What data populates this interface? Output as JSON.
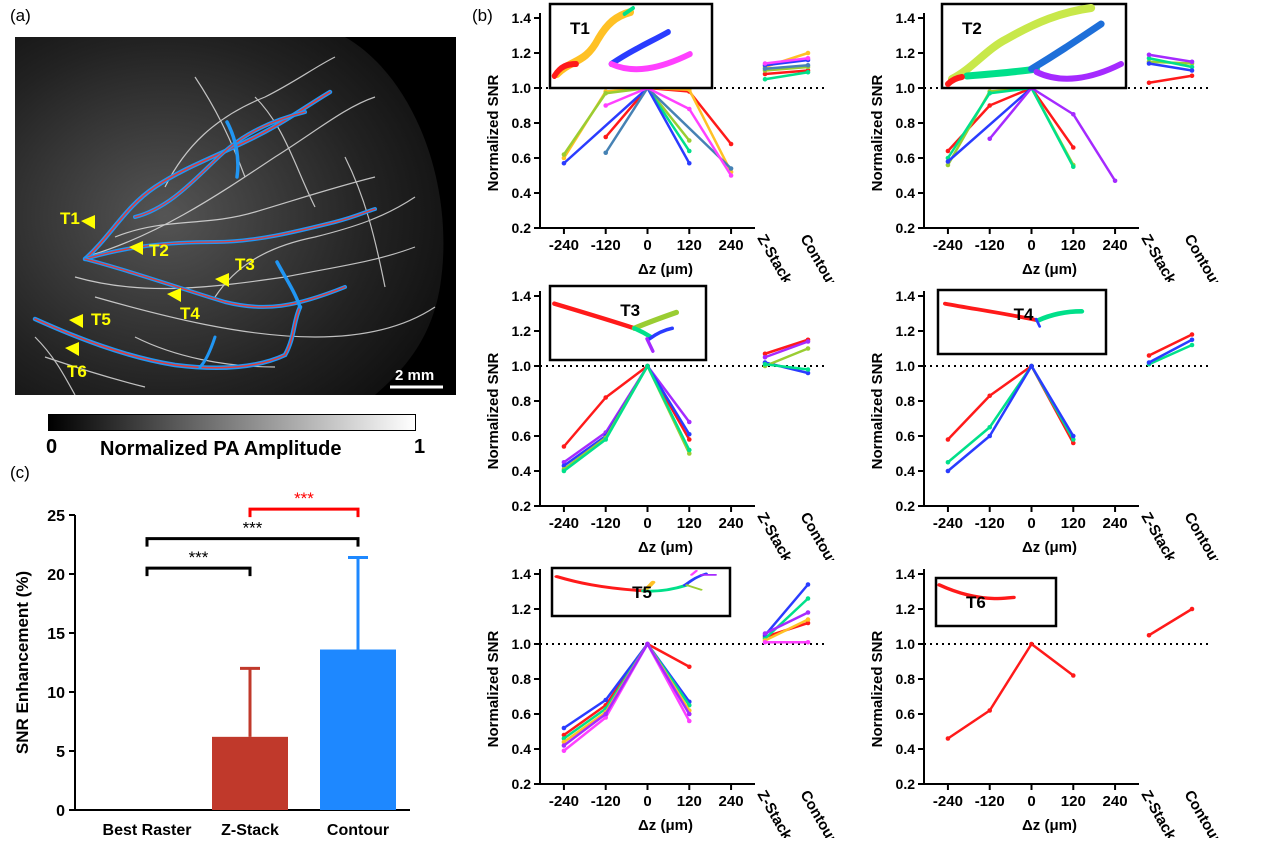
{
  "panels": {
    "a": "(a)",
    "b": "(b)",
    "c": "(c)"
  },
  "panel_a": {
    "targets": [
      "T1",
      "T2",
      "T3",
      "T4",
      "T5",
      "T6"
    ],
    "scale_bar": "2 mm",
    "colorbar": {
      "title": "Normalized PA Amplitude",
      "min": "0",
      "max": "1"
    }
  },
  "chart_data": [
    {
      "type": "bar",
      "panel": "c",
      "categories": [
        "Best Raster",
        "Z-Stack",
        "Contour"
      ],
      "values": [
        0,
        6.2,
        13.6
      ],
      "errors": [
        0,
        5.8,
        7.8
      ],
      "colors": [
        "#c0392b",
        "#c0392b",
        "#1e88ff"
      ],
      "xlabel": "",
      "ylabel": "SNR Enhancement (%)",
      "ylim": [
        0,
        25
      ],
      "yticks": [
        "0",
        "5",
        "10",
        "15",
        "20",
        "25"
      ],
      "significance": [
        {
          "label": "***",
          "from": "Best Raster",
          "to": "Z-Stack",
          "color": "#000000"
        },
        {
          "label": "***",
          "from": "Best Raster",
          "to": "Contour",
          "color": "#000000"
        },
        {
          "label": "***",
          "from": "Z-Stack",
          "to": "Contour",
          "color": "#ff0000"
        }
      ]
    },
    {
      "type": "line",
      "panel": "b",
      "title": "T1",
      "xlabel": "Δz (μm)",
      "ylabel": "Normalized SNR",
      "x": [
        -240,
        -120,
        0,
        120,
        240
      ],
      "xticks": [
        "-240",
        "-120",
        "0",
        "120",
        "240"
      ],
      "categories": [
        "Z-Stack",
        "Contour"
      ],
      "ylim": [
        0.2,
        1.4
      ],
      "yticks": [
        "0.2",
        "0.4",
        "0.6",
        "0.8",
        "1.0",
        "1.2",
        "1.4"
      ],
      "reference": 1.0,
      "series": [
        {
          "color": "#ff1a1a",
          "values": [
            null,
            0.72,
            1.0,
            0.98,
            0.68
          ],
          "compare": [
            1.08,
            1.1
          ]
        },
        {
          "color": "#ffc125",
          "values": [
            0.6,
            0.98,
            1.0,
            0.99,
            0.52
          ],
          "compare": [
            1.12,
            1.2
          ]
        },
        {
          "color": "#9acd32",
          "values": [
            0.62,
            0.97,
            1.0,
            0.7,
            null
          ],
          "compare": [
            1.1,
            1.12
          ]
        },
        {
          "color": "#00e08a",
          "values": [
            null,
            null,
            1.0,
            0.64,
            null
          ],
          "compare": [
            1.05,
            1.09
          ]
        },
        {
          "color": "#2a3cff",
          "values": [
            0.57,
            null,
            1.0,
            0.57,
            null
          ],
          "compare": [
            1.13,
            1.16
          ]
        },
        {
          "color": "#4682b4",
          "values": [
            null,
            0.63,
            1.0,
            null,
            0.54
          ],
          "compare": [
            1.11,
            1.13
          ]
        },
        {
          "color": "#ff40ff",
          "values": [
            null,
            0.9,
            1.0,
            0.88,
            0.5
          ],
          "compare": [
            1.14,
            1.17
          ]
        }
      ]
    },
    {
      "type": "line",
      "panel": "b",
      "title": "T2",
      "xlabel": "Δz (μm)",
      "ylabel": "Normalized SNR",
      "x": [
        -240,
        -120,
        0,
        120,
        240
      ],
      "xticks": [
        "-240",
        "-120",
        "0",
        "120",
        "240"
      ],
      "categories": [
        "Z-Stack",
        "Contour"
      ],
      "ylim": [
        0.2,
        1.4
      ],
      "yticks": [
        "0.2",
        "0.4",
        "0.6",
        "0.8",
        "1.0",
        "1.2",
        "1.4"
      ],
      "reference": 1.0,
      "series": [
        {
          "color": "#ff1a1a",
          "values": [
            0.64,
            0.9,
            1.0,
            0.66,
            null
          ],
          "compare": [
            1.03,
            1.07
          ]
        },
        {
          "color": "#9acd32",
          "values": [
            0.56,
            0.98,
            1.0,
            0.56,
            null
          ],
          "compare": [
            1.15,
            1.14
          ]
        },
        {
          "color": "#00e08a",
          "values": [
            0.6,
            0.97,
            1.0,
            0.55,
            null
          ],
          "compare": [
            1.17,
            1.12
          ]
        },
        {
          "color": "#2a3cff",
          "values": [
            0.58,
            null,
            1.0,
            null,
            null
          ],
          "compare": [
            1.14,
            1.1
          ]
        },
        {
          "color": "#a52aff",
          "values": [
            null,
            0.71,
            1.0,
            0.85,
            0.47
          ],
          "compare": [
            1.19,
            1.15
          ]
        }
      ]
    },
    {
      "type": "line",
      "panel": "b",
      "title": "T3",
      "xlabel": "Δz (μm)",
      "ylabel": "Normalized SNR",
      "x": [
        -240,
        -120,
        0,
        120,
        240
      ],
      "xticks": [
        "-240",
        "-120",
        "0",
        "120",
        "240"
      ],
      "categories": [
        "Z-Stack",
        "Contour"
      ],
      "ylim": [
        0.2,
        1.4
      ],
      "yticks": [
        "0.2",
        "0.4",
        "0.6",
        "0.8",
        "1.0",
        "1.2",
        "1.4"
      ],
      "reference": 1.0,
      "series": [
        {
          "color": "#ff1a1a",
          "values": [
            0.54,
            0.82,
            1.0,
            0.58,
            null
          ],
          "compare": [
            1.07,
            1.15
          ]
        },
        {
          "color": "#a52aff",
          "values": [
            0.45,
            0.62,
            1.0,
            0.68,
            null
          ],
          "compare": [
            1.05,
            1.14
          ]
        },
        {
          "color": "#2a3cff",
          "values": [
            0.43,
            0.6,
            1.0,
            0.61,
            null
          ],
          "compare": [
            1.02,
            0.96
          ]
        },
        {
          "color": "#9acd32",
          "values": [
            0.41,
            0.59,
            1.0,
            0.5,
            null
          ],
          "compare": [
            1.0,
            1.1
          ]
        },
        {
          "color": "#00e08a",
          "values": [
            0.4,
            0.58,
            1.0,
            0.52,
            null
          ],
          "compare": [
            1.01,
            0.98
          ]
        }
      ]
    },
    {
      "type": "line",
      "panel": "b",
      "title": "T4",
      "xlabel": "Δz (μm)",
      "ylabel": "Normalized SNR",
      "x": [
        -240,
        -120,
        0,
        120,
        240
      ],
      "xticks": [
        "-240",
        "-120",
        "0",
        "120",
        "240"
      ],
      "categories": [
        "Z-Stack",
        "Contour"
      ],
      "ylim": [
        0.2,
        1.4
      ],
      "yticks": [
        "0.2",
        "0.4",
        "0.6",
        "0.8",
        "1.0",
        "1.2",
        "1.4"
      ],
      "reference": 1.0,
      "series": [
        {
          "color": "#ff1a1a",
          "values": [
            0.58,
            0.83,
            1.0,
            0.56,
            null
          ],
          "compare": [
            1.06,
            1.18
          ]
        },
        {
          "color": "#00e08a",
          "values": [
            0.45,
            0.65,
            1.0,
            0.58,
            null
          ],
          "compare": [
            1.01,
            1.12
          ]
        },
        {
          "color": "#2a3cff",
          "values": [
            0.4,
            0.6,
            1.0,
            0.6,
            null
          ],
          "compare": [
            1.02,
            1.15
          ]
        }
      ]
    },
    {
      "type": "line",
      "panel": "b",
      "title": "T5",
      "xlabel": "Δz (μm)",
      "ylabel": "Normalized SNR",
      "x": [
        -240,
        -120,
        0,
        120,
        240
      ],
      "xticks": [
        "-240",
        "-120",
        "0",
        "120",
        "240"
      ],
      "categories": [
        "Z-Stack",
        "Contour"
      ],
      "ylim": [
        0.2,
        1.4
      ],
      "yticks": [
        "0.2",
        "0.4",
        "0.6",
        "0.8",
        "1.0",
        "1.2",
        "1.4"
      ],
      "reference": 1.0,
      "series": [
        {
          "color": "#ff1a1a",
          "values": [
            0.48,
            0.65,
            1.0,
            0.87,
            null
          ],
          "compare": [
            1.04,
            1.12
          ]
        },
        {
          "color": "#2a3cff",
          "values": [
            0.52,
            0.68,
            1.0,
            0.67,
            null
          ],
          "compare": [
            1.05,
            1.34
          ]
        },
        {
          "color": "#00e08a",
          "values": [
            0.46,
            0.63,
            1.0,
            0.65,
            null
          ],
          "compare": [
            1.03,
            1.26
          ]
        },
        {
          "color": "#ffc125",
          "values": [
            0.44,
            0.61,
            1.0,
            0.62,
            null
          ],
          "compare": [
            1.02,
            1.14
          ]
        },
        {
          "color": "#ff40ff",
          "values": [
            0.39,
            0.58,
            1.0,
            0.56,
            null
          ],
          "compare": [
            1.01,
            1.01
          ]
        },
        {
          "color": "#a52aff",
          "values": [
            0.42,
            0.6,
            1.0,
            0.6,
            null
          ],
          "compare": [
            1.06,
            1.18
          ]
        }
      ]
    },
    {
      "type": "line",
      "panel": "b",
      "title": "T6",
      "xlabel": "Δz (μm)",
      "ylabel": "Normalized SNR",
      "x": [
        -240,
        -120,
        0,
        120,
        240
      ],
      "xticks": [
        "-240",
        "-120",
        "0",
        "120",
        "240"
      ],
      "categories": [
        "Z-Stack",
        "Contour"
      ],
      "ylim": [
        0.2,
        1.4
      ],
      "yticks": [
        "0.2",
        "0.4",
        "0.6",
        "0.8",
        "1.0",
        "1.2",
        "1.4"
      ],
      "reference": 1.0,
      "series": [
        {
          "color": "#ff1a1a",
          "values": [
            0.46,
            0.62,
            1.0,
            0.82,
            null
          ],
          "compare": [
            1.05,
            1.2
          ]
        }
      ]
    }
  ]
}
